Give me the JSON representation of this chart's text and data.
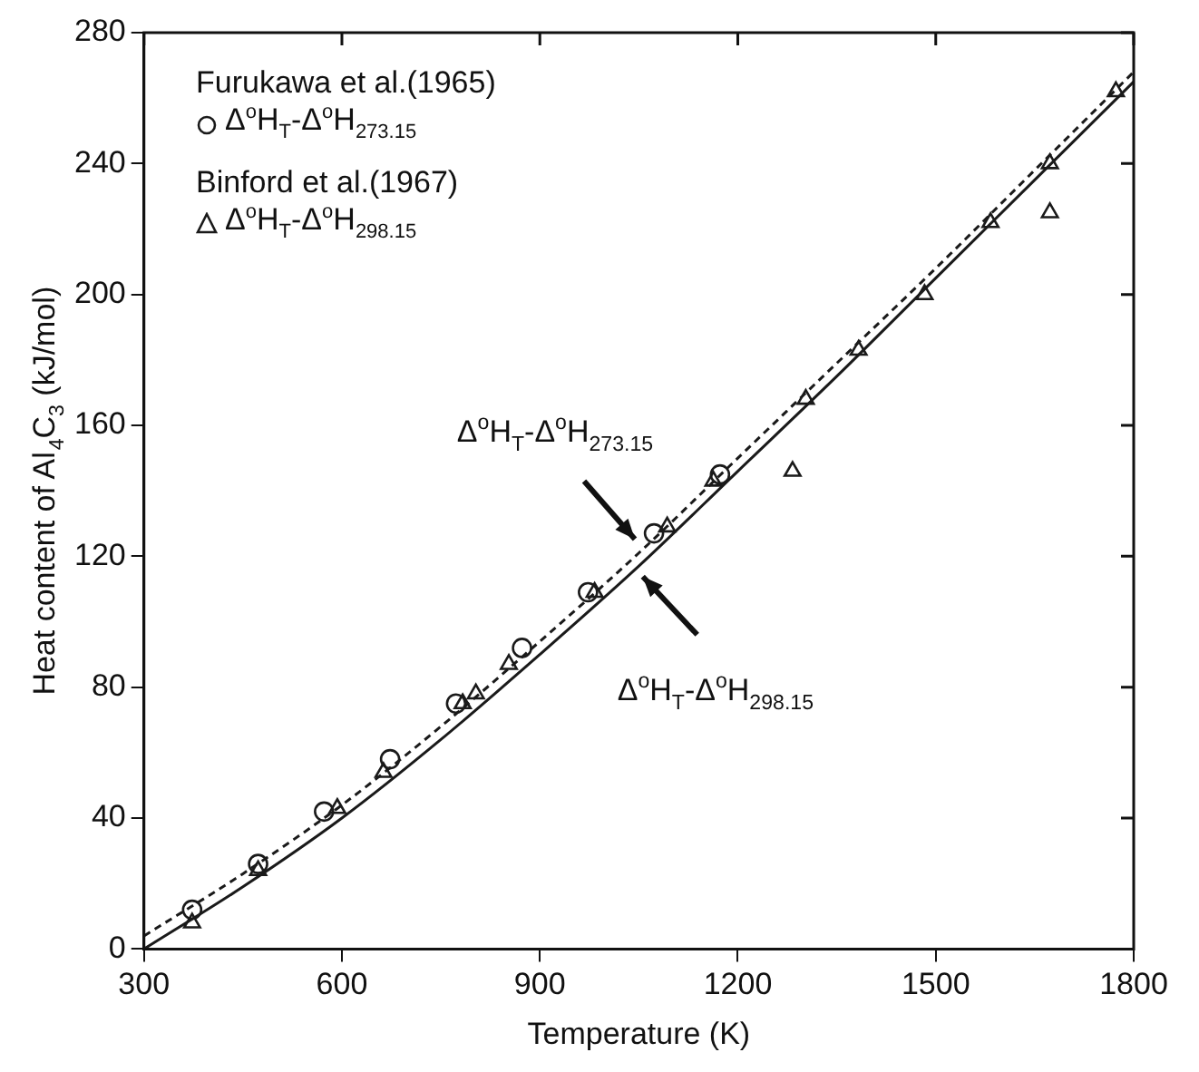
{
  "chart_data": {
    "type": "scatter",
    "xlabel": "Temperature (K)",
    "ylabel": "Heat content of Al$_{4}$C$_{3}$ (kJ/mol)",
    "xlim": [
      300,
      1800
    ],
    "xticks": [
      300,
      600,
      900,
      1200,
      1500,
      1800
    ],
    "ylim": [
      0,
      280
    ],
    "yticks": [
      0,
      40,
      80,
      120,
      160,
      200,
      240,
      280
    ],
    "grid": false,
    "legend": "top left",
    "series": [
      {
        "name": "Δ$^{o}$H$_{T}$-Δ$^{o}$H$_{273.15}$",
        "marker": "circle",
        "color": "#1a1a1a",
        "x": [
          373,
          473,
          573,
          673,
          773,
          873,
          973,
          1073,
          1173
        ],
        "values": [
          12,
          26,
          42,
          58,
          75,
          92,
          109,
          127,
          145
        ]
      },
      {
        "name": "Δ$^{o}$H$_{T}$-Δ$^{o}$H$_{298.15}$",
        "marker": "triangle",
        "color": "#1a1a1a",
        "x": [
          373,
          473,
          593,
          663,
          783,
          803,
          853,
          983,
          1093,
          1163,
          1283,
          1303,
          1383,
          1483,
          1583,
          1673,
          1673,
          1773
        ],
        "values": [
          8,
          24,
          43,
          54,
          75,
          78,
          87,
          109,
          129,
          143,
          146,
          168,
          183,
          200,
          222,
          225,
          240,
          262
        ]
      },
      {
        "type": "line",
        "line_style": "dashed",
        "marker": "none",
        "color": "#1a1a1a",
        "x": [
          300,
          450,
          600,
          750,
          900,
          1050,
          1200,
          1350,
          1500,
          1650,
          1800
        ],
        "values": [
          4,
          23,
          44,
          68,
          94,
          121,
          150,
          179,
          208,
          238,
          268
        ]
      },
      {
        "type": "line",
        "line_style": "solid",
        "marker": "none",
        "color": "#1a1a1a",
        "x": [
          300,
          450,
          600,
          750,
          900,
          1050,
          1200,
          1350,
          1500,
          1650,
          1800
        ],
        "values": [
          0,
          19,
          40,
          64,
          90,
          117,
          146,
          175,
          205,
          235,
          265
        ]
      }
    ],
    "annotations": [
      "Furukawa et al.(1965)",
      "Binford et al.(1967)",
      {
        "text": "Δ$^{o}$H$_{T}$-Δ$^{o}$H$_{273.15}$",
        "x": 1055,
        "y": 123
      },
      {
        "text": "Δ$^{o}$H$_{T}$-Δ$^{o}$H$_{298.15}$",
        "x": 1045,
        "y": 116
      }
    ]
  }
}
